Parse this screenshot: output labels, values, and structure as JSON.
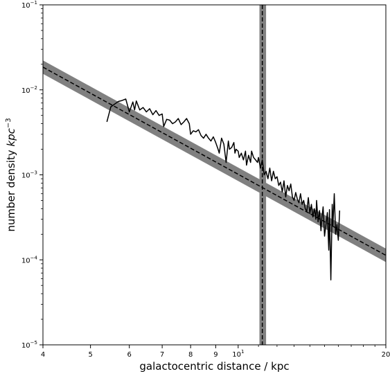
{
  "chart_data": {
    "type": "line",
    "xlabel": "galactocentric distance / kpc",
    "ylabel_main": "number density ",
    "ylabel_unit_base": "kpc",
    "ylabel_unit_exp": "−3",
    "x_scale": "log",
    "y_scale": "log",
    "xlim": [
      4,
      20
    ],
    "ylim": [
      1e-05,
      0.1
    ],
    "grid": false,
    "x_ticks": [
      {
        "value": 4,
        "label": "4"
      },
      {
        "value": 5,
        "label": "5"
      },
      {
        "value": 6,
        "label": "6"
      },
      {
        "value": 7,
        "label": "7"
      },
      {
        "value": 8,
        "label": "8"
      },
      {
        "value": 9,
        "label": "9"
      },
      {
        "value": 10,
        "label": "10",
        "exp": "1"
      },
      {
        "value": 20,
        "label": "20"
      }
    ],
    "x_minor_ticks": [
      11,
      12,
      13,
      14,
      15,
      16,
      17,
      18,
      19
    ],
    "y_ticks": [
      {
        "value": 1e-05,
        "label": "10",
        "exp": "−5"
      },
      {
        "value": 0.0001,
        "label": "10",
        "exp": "−4"
      },
      {
        "value": 0.001,
        "label": "10",
        "exp": "−3"
      },
      {
        "value": 0.01,
        "label": "10",
        "exp": "−2"
      },
      {
        "value": 0.1,
        "label": "10",
        "exp": "−1"
      }
    ],
    "fit_line": {
      "x": [
        4,
        20
      ],
      "y": [
        0.0185,
        0.000113
      ],
      "band_factor": 1.2,
      "color": "#808080",
      "style": "dashed"
    },
    "vertical_marker": {
      "x": 11.2,
      "band": [
        11.05,
        11.4
      ],
      "color": "#808080",
      "style": "dashed"
    },
    "series": [
      {
        "color": "#000000",
        "x": [
          5.4,
          5.5,
          5.6,
          5.7,
          5.8,
          5.9,
          6.0,
          6.1,
          6.15,
          6.2,
          6.3,
          6.4,
          6.5,
          6.6,
          6.7,
          6.8,
          6.9,
          7.0,
          7.05,
          7.15,
          7.25,
          7.35,
          7.45,
          7.55,
          7.65,
          7.75,
          7.85,
          7.95,
          8.0,
          8.1,
          8.2,
          8.3,
          8.4,
          8.5,
          8.6,
          8.7,
          8.8,
          8.9,
          9.0,
          9.1,
          9.15,
          9.25,
          9.35,
          9.45,
          9.55,
          9.6,
          9.7,
          9.8,
          9.85,
          9.9,
          10.0,
          10.05,
          10.15,
          10.25,
          10.35,
          10.4,
          10.5,
          10.6,
          10.65,
          10.75,
          10.85,
          10.95,
          11.0,
          11.1,
          11.2,
          11.3,
          11.4,
          11.5,
          11.6,
          11.7,
          11.8,
          11.9,
          12.0,
          12.1,
          12.2,
          12.3,
          12.4,
          12.5,
          12.6,
          12.7,
          12.8,
          12.9,
          13.0,
          13.1,
          13.2,
          13.3,
          13.4,
          13.5,
          13.6,
          13.7,
          13.8,
          13.9,
          14.0,
          14.1,
          14.2,
          14.3,
          14.4,
          14.45,
          14.55,
          14.65,
          14.75,
          14.8,
          14.9,
          15.0,
          15.1,
          15.2,
          15.3,
          15.35,
          15.45,
          15.55,
          15.6,
          15.7,
          15.8,
          15.9,
          16.0,
          16.1
        ],
        "y": [
          0.0042,
          0.0063,
          0.0068,
          0.0073,
          0.0075,
          0.0078,
          0.0055,
          0.0072,
          0.0058,
          0.0074,
          0.0058,
          0.0062,
          0.0055,
          0.006,
          0.0051,
          0.0057,
          0.005,
          0.0052,
          0.0037,
          0.0045,
          0.0044,
          0.004,
          0.0042,
          0.0046,
          0.0039,
          0.0042,
          0.0046,
          0.004,
          0.003,
          0.0033,
          0.0032,
          0.0034,
          0.0029,
          0.0027,
          0.003,
          0.0027,
          0.0025,
          0.0028,
          0.0024,
          0.002,
          0.0018,
          0.0027,
          0.0023,
          0.0014,
          0.0025,
          0.002,
          0.0021,
          0.0024,
          0.0018,
          0.002,
          0.0019,
          0.0016,
          0.0018,
          0.0015,
          0.0019,
          0.0013,
          0.0017,
          0.0014,
          0.0019,
          0.0016,
          0.0015,
          0.0014,
          0.0016,
          0.0012,
          0.0015,
          0.001,
          0.0011,
          0.0009,
          0.0012,
          0.00085,
          0.0011,
          0.0009,
          0.00095,
          0.00075,
          0.00082,
          0.00063,
          0.00085,
          0.00055,
          0.00075,
          0.00065,
          0.00078,
          0.00055,
          0.0005,
          0.00062,
          0.00052,
          0.00047,
          0.0006,
          0.00045,
          0.0005,
          0.0004,
          0.00037,
          0.00054,
          0.00035,
          0.00045,
          0.00032,
          0.0004,
          0.0003,
          0.0005,
          0.00028,
          0.00038,
          0.00022,
          0.0003,
          0.00042,
          0.00019,
          0.00026,
          0.00036,
          0.00013,
          0.00039,
          5.8e-05,
          0.00045,
          0.00025,
          0.0006,
          0.0002,
          0.00026,
          0.00017,
          0.00038
        ]
      }
    ]
  }
}
